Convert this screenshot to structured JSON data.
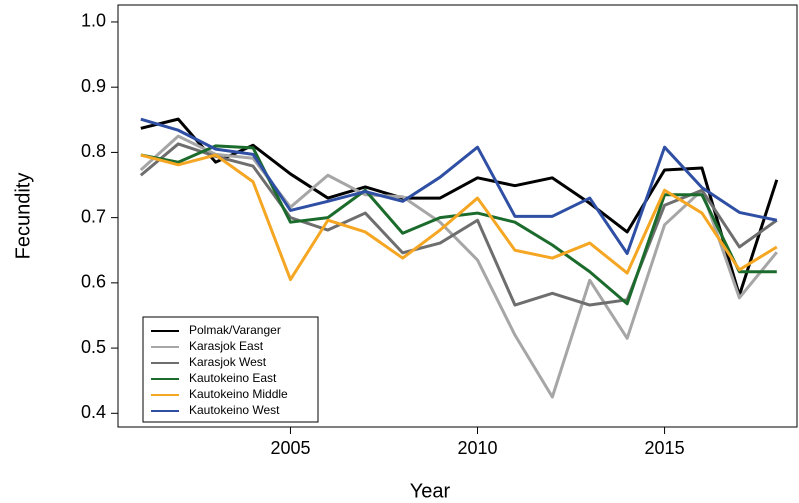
{
  "chart_data": {
    "type": "line",
    "x": [
      2001,
      2002,
      2003,
      2004,
      2005,
      2006,
      2007,
      2008,
      2009,
      2010,
      2011,
      2012,
      2013,
      2014,
      2015,
      2016,
      2017,
      2018
    ],
    "xlabel": "Year",
    "ylabel": "Fecundity",
    "xlim": [
      2000.39,
      2018.54
    ],
    "ylim": [
      0.379,
      1.026
    ],
    "xticks": [
      2005,
      2010,
      2015
    ],
    "yticks": [
      0.4,
      0.5,
      0.6,
      0.7,
      0.8,
      0.9,
      {
        "value": 1,
        "label": "1.0"
      }
    ],
    "legend": "bottom-left",
    "series": [
      {
        "name": "Polmak/Varanger",
        "color": "#000000",
        "values": [
          0.837,
          0.851,
          0.785,
          0.811,
          0.767,
          0.73,
          0.747,
          0.73,
          0.73,
          0.761,
          0.749,
          0.761,
          0.722,
          0.678,
          0.773,
          0.776,
          0.581,
          0.758
        ]
      },
      {
        "name": "Karasjok East",
        "color": "#a6a6a6",
        "values": [
          0.773,
          0.825,
          0.797,
          0.791,
          0.716,
          0.765,
          0.735,
          0.732,
          0.693,
          0.635,
          0.52,
          0.425,
          0.604,
          0.515,
          0.689,
          0.742,
          0.577,
          0.647
        ]
      },
      {
        "name": "Karasjok West",
        "color": "#6e6e6e",
        "values": [
          0.765,
          0.813,
          0.794,
          0.779,
          0.7,
          0.681,
          0.707,
          0.646,
          0.661,
          0.696,
          0.566,
          0.584,
          0.566,
          0.574,
          0.719,
          0.742,
          0.655,
          0.696
        ]
      },
      {
        "name": "Kautokeino East",
        "color": "#1b6b2c",
        "values": [
          0.796,
          0.785,
          0.81,
          0.807,
          0.693,
          0.7,
          0.742,
          0.676,
          0.7,
          0.707,
          0.693,
          0.658,
          0.617,
          0.568,
          0.735,
          0.735,
          0.617,
          0.617
        ]
      },
      {
        "name": "Kautokeino Middle",
        "color": "#f5a623",
        "values": [
          0.796,
          0.781,
          0.796,
          0.755,
          0.605,
          0.696,
          0.678,
          0.638,
          0.681,
          0.73,
          0.65,
          0.638,
          0.661,
          0.615,
          0.742,
          0.707,
          0.62,
          0.655
        ]
      },
      {
        "name": "Kautokeino West",
        "color": "#2e4fa3",
        "values": [
          0.851,
          0.834,
          0.805,
          0.797,
          0.711,
          0.725,
          0.74,
          0.725,
          0.762,
          0.808,
          0.702,
          0.702,
          0.73,
          0.645,
          0.808,
          0.746,
          0.708,
          0.696
        ]
      }
    ]
  }
}
